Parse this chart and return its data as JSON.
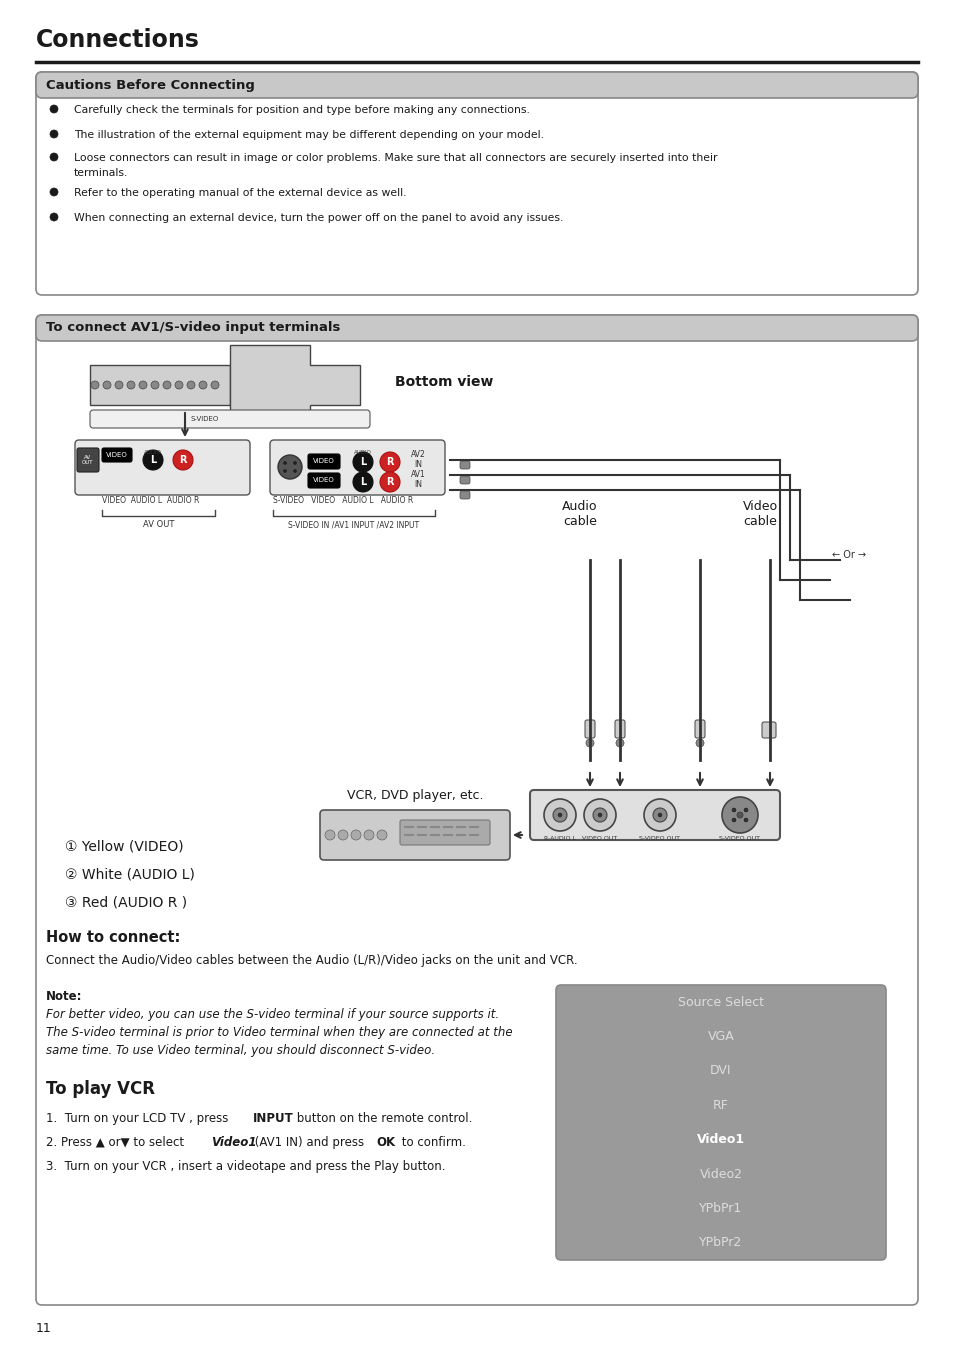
{
  "page_bg": "#ffffff",
  "title": "Connections",
  "title_fontsize": 17,
  "cautions_header": "Cautions Before Connecting",
  "cautions_items": [
    "Carefully check the terminals for position and type before making any connections.",
    "The illustration of the external equipment may be different depending on your model.",
    "Loose connectors can result in image or color problems. Make sure that all connectors are securely inserted into their terminals.",
    "Refer to the operating manual of the external device as well.",
    "When connecting an external device, turn the power off on the panel to avoid any issues."
  ],
  "av_header": "To connect AV1/S-video input terminals",
  "bottom_view_label": "Bottom view",
  "audio_cable_label": "Audio\ncable",
  "video_cable_label": "Video\ncable",
  "vcr_label": "VCR, DVD player, etc.",
  "av_out_label": "AV OUT",
  "svideo_in_label": "S-VIDEO IN /AV1 INPUT /AV2 INPUT",
  "svideo_label": "S-VIDEO",
  "video_label": "VIDEO",
  "audiol_label": "AUDIO L",
  "audior_label": "AUDIO R",
  "av_out_sub": "VIDEO   AUDIO L   AUDIO R",
  "av2_in_label": "AV2\nIN",
  "av1_in_label": "AV1\nIN",
  "legend_items": [
    "① Yellow (VIDEO)",
    "② White (AUDIO L)",
    "③ Red (AUDIO R )"
  ],
  "how_header": "How to connect:",
  "how_text": "Connect the Audio/Video cables between the Audio (L/R)/Video jacks on the unit and VCR.",
  "note_header": "Note:",
  "note_lines": [
    "For better video, you can use the S-video terminal if your source supports it.",
    "The S-video terminal is prior to Video terminal when they are connected at the",
    "same time. To use Video terminal, you should disconnect S-video."
  ],
  "vcr_header": "To play VCR",
  "vcr_step1a": "1.  Turn on your LCD TV , press ",
  "vcr_step1b": "INPUT",
  "vcr_step1c": " button on the remote control.",
  "vcr_step2a": "2. Press ▲ or▼ to select ",
  "vcr_step2b": "Video1",
  "vcr_step2c": "(AV1 IN) and press ",
  "vcr_step2d": "OK",
  "vcr_step2e": " to confirm.",
  "vcr_step3": "3.  Turn on your VCR , insert a videotape and press the Play button.",
  "source_items": [
    "Source Select",
    "VGA",
    "DVI",
    "RF",
    "Video1",
    "Video2",
    "YPbPr1",
    "YPbPr2"
  ],
  "source_highlight": "Video1",
  "source_bg": "#9a9a9a",
  "page_number": "11",
  "port_labels": [
    "R-AUDIO L",
    "VIDEO OUT",
    "S-VIDEO OUT"
  ],
  "header_bg": "#c8c8c8",
  "box_border": "#888888",
  "box_bg": "#ffffff"
}
